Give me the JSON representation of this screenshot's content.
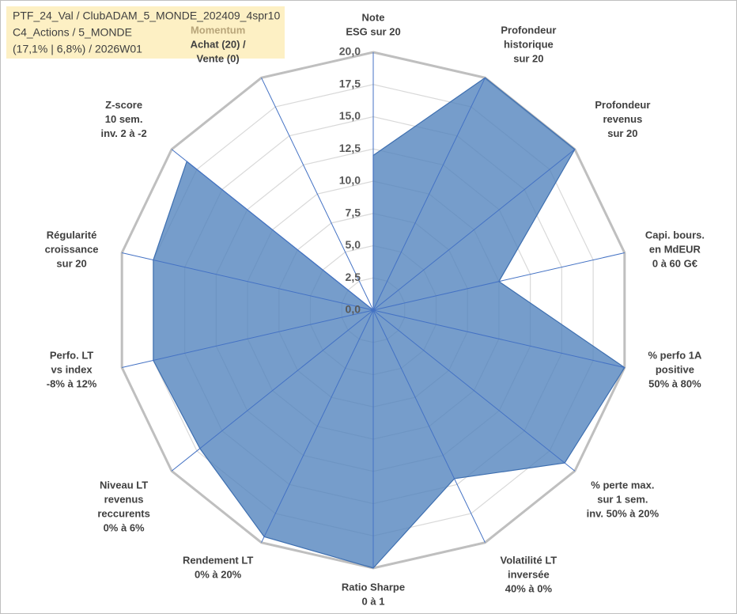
{
  "chart_data": {
    "type": "radar",
    "title_lines": [
      "PTF_24_Val / ClubADAM_5_MONDE_202409_4spr10",
      "C4_Actions / 5_MONDE",
      "(17,1% | 6,8%) / 2026W01"
    ],
    "categories": [
      [
        "Note",
        "ESG sur 20"
      ],
      [
        "Profondeur",
        "historique",
        "sur 20"
      ],
      [
        "Profondeur",
        "revenus",
        "sur 20"
      ],
      [
        "Capi. bours.",
        "en MdEUR",
        "0 à 60 G€"
      ],
      [
        "% perfo 1A",
        "positive",
        "50% à 80%"
      ],
      [
        "% perte max.",
        "sur 1 sem.",
        "inv. 50% à 20%"
      ],
      [
        "Volatilité LT",
        "inversée",
        "40% à 0%"
      ],
      [
        "Ratio Sharpe",
        "0 à 1"
      ],
      [
        "Rendement LT",
        "0% à 20%"
      ],
      [
        "Niveau LT",
        "revenus",
        "reccurents",
        "0% à 6%"
      ],
      [
        "Perfo. LT",
        "vs index",
        "-8% à 12%"
      ],
      [
        "Régularité",
        "croissance",
        "sur 20"
      ],
      [
        "Z-score",
        "10 sem.",
        "inv. 2 à -2"
      ],
      {
        "note": "Momentum",
        "lines": [
          "Achat (20) /",
          "Vente (0)"
        ]
      }
    ],
    "series": [
      {
        "color": "#4f81bd",
        "values": [
          12,
          20,
          20,
          10,
          20,
          19,
          14.5,
          20,
          19.5,
          17.2,
          17.5,
          17.5,
          18.5,
          0
        ]
      }
    ],
    "note_color": "#b8a57a",
    "ylim": [
      0,
      20
    ],
    "yticks": [
      {
        "value": 0,
        "label": "0,0"
      },
      {
        "value": 2.5,
        "label": "2,5"
      },
      {
        "value": 5,
        "label": "5,0"
      },
      {
        "value": 7.5,
        "label": "7,5"
      },
      {
        "value": 10,
        "label": "10,0"
      },
      {
        "value": 12.5,
        "label": "12,5"
      },
      {
        "value": 15,
        "label": "15,0"
      },
      {
        "value": 17.5,
        "label": "17,5"
      },
      {
        "value": 20,
        "label": "20,0"
      }
    ],
    "grid": true
  }
}
